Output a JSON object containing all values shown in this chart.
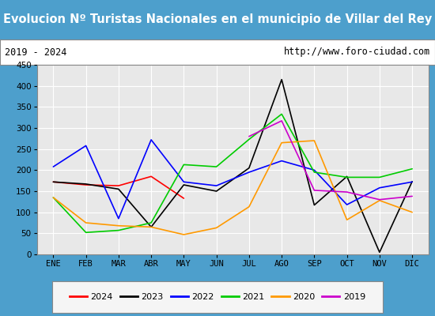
{
  "title": "Evolucion Nº Turistas Nacionales en el municipio de Villar del Rey",
  "subtitle_left": "2019 - 2024",
  "subtitle_right": "http://www.foro-ciudad.com",
  "months": [
    "ENE",
    "FEB",
    "MAR",
    "ABR",
    "MAY",
    "JUN",
    "JUL",
    "AGO",
    "SEP",
    "OCT",
    "NOV",
    "DIC"
  ],
  "series": {
    "2024": {
      "color": "#ff0000",
      "data": [
        172,
        165,
        163,
        185,
        133,
        null,
        null,
        null,
        null,
        null,
        null,
        null
      ]
    },
    "2023": {
      "color": "#000000",
      "data": [
        172,
        167,
        155,
        65,
        165,
        150,
        205,
        415,
        117,
        185,
        5,
        173
      ]
    },
    "2022": {
      "color": "#0000ff",
      "data": [
        208,
        258,
        85,
        272,
        172,
        163,
        195,
        222,
        200,
        118,
        158,
        172
      ]
    },
    "2021": {
      "color": "#00cc00",
      "data": [
        135,
        52,
        57,
        75,
        213,
        208,
        273,
        333,
        195,
        183,
        183,
        203
      ]
    },
    "2020": {
      "color": "#ff9900",
      "data": [
        135,
        75,
        68,
        65,
        47,
        63,
        113,
        265,
        270,
        82,
        128,
        100
      ]
    },
    "2019": {
      "color": "#cc00cc",
      "data": [
        null,
        null,
        null,
        null,
        null,
        null,
        280,
        317,
        152,
        148,
        130,
        138
      ]
    }
  },
  "ylim": [
    0,
    450
  ],
  "yticks": [
    0,
    50,
    100,
    150,
    200,
    250,
    300,
    350,
    400,
    450
  ],
  "title_bg_color": "#4d9fcc",
  "title_text_color": "#ffffff",
  "plot_bg_color": "#e8e8e8",
  "grid_color": "#ffffff",
  "border_color": "#888888",
  "subtitle_bg_color": "#ffffff",
  "outer_bg_color": "#4d9fcc"
}
